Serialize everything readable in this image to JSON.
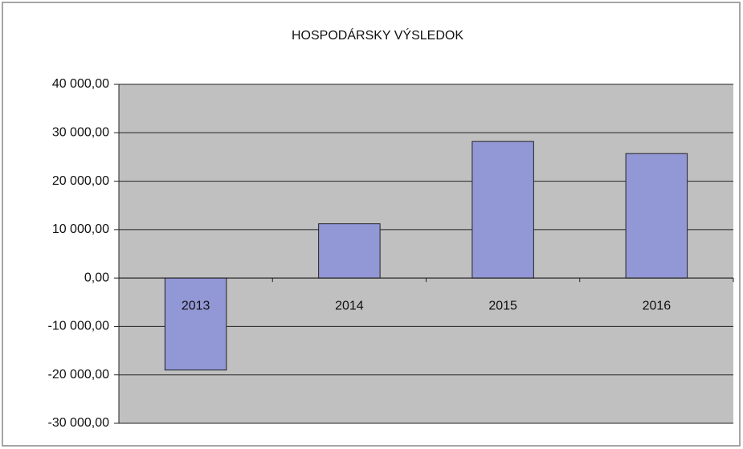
{
  "chart_data": {
    "type": "bar",
    "title": "HOSPODÁRSKY VÝSLEDOK",
    "categories": [
      "2013",
      "2014",
      "2015",
      "2016"
    ],
    "values": [
      -19000,
      11200,
      28200,
      25700
    ],
    "color": "#9297d6",
    "ylim": [
      -30000,
      40000
    ],
    "yticks": [
      {
        "value": -30000,
        "label": "-30 000,00"
      },
      {
        "value": -20000,
        "label": "-20 000,00"
      },
      {
        "value": -10000,
        "label": "-10 000,00"
      },
      {
        "value": 0,
        "label": "0,00"
      },
      {
        "value": 10000,
        "label": "10 000,00"
      },
      {
        "value": 20000,
        "label": "20 000,00"
      },
      {
        "value": 30000,
        "label": "30 000,00"
      },
      {
        "value": 40000,
        "label": "40 000,00"
      }
    ],
    "grid": true
  }
}
